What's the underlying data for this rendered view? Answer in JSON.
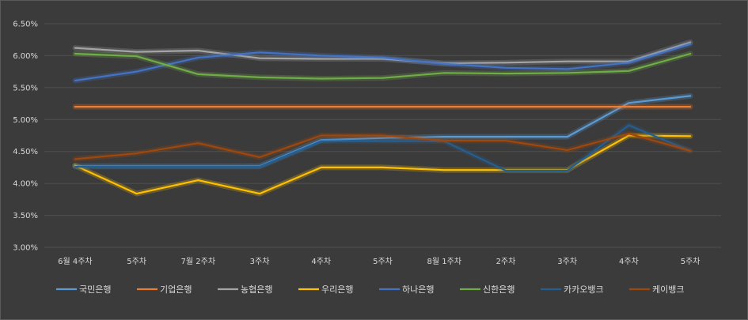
{
  "chart_data": {
    "type": "line",
    "title": "",
    "xlabel": "",
    "ylabel": "",
    "ylim": [
      0.03,
      0.065
    ],
    "y_ticks": [
      "3.00%",
      "3.50%",
      "4.00%",
      "4.50%",
      "5.00%",
      "5.50%",
      "6.00%",
      "6.50%"
    ],
    "y_tick_values": [
      0.03,
      0.035,
      0.04,
      0.045,
      0.05,
      0.055,
      0.06,
      0.065
    ],
    "grid": true,
    "legend_position": "bottom",
    "categories": [
      "6월 4주차",
      "5주차",
      "7월 2주차",
      "3주차",
      "4주차",
      "5주차",
      "8월 1주차",
      "2주차",
      "3주차",
      "4주차",
      "5주차"
    ],
    "series": [
      {
        "name": "국민은행",
        "color": "#5b9bd5",
        "values": [
          0.0427,
          0.0427,
          0.0427,
          0.0427,
          0.0468,
          0.0471,
          0.0473,
          0.0473,
          0.0473,
          0.0526,
          0.0537
        ]
      },
      {
        "name": "기업은행",
        "color": "#ed7d31",
        "values": [
          0.052,
          0.052,
          0.052,
          0.052,
          0.052,
          0.052,
          0.052,
          0.052,
          0.052,
          0.052,
          0.052
        ]
      },
      {
        "name": "농협은행",
        "color": "#a5a5a5",
        "values": [
          0.0612,
          0.0606,
          0.0608,
          0.0596,
          0.0595,
          0.0595,
          0.0588,
          0.0589,
          0.0591,
          0.0591,
          0.0621
        ]
      },
      {
        "name": "우리은행",
        "color": "#ffc000",
        "values": [
          0.0428,
          0.0384,
          0.0405,
          0.0384,
          0.0425,
          0.0425,
          0.0421,
          0.0421,
          0.0421,
          0.0475,
          0.0474
        ]
      },
      {
        "name": "하나은행",
        "color": "#4472c4",
        "values": [
          0.0561,
          0.0575,
          0.0597,
          0.0605,
          0.06,
          0.0597,
          0.0587,
          0.0581,
          0.0579,
          0.0589,
          0.0618
        ]
      },
      {
        "name": "신한은행",
        "color": "#70ad47",
        "values": [
          0.0603,
          0.0599,
          0.0571,
          0.0566,
          0.0564,
          0.0565,
          0.0573,
          0.0572,
          0.0573,
          0.0576,
          0.0603
        ]
      },
      {
        "name": "카카오뱅크",
        "color": "#255e91",
        "values": [
          0.0426,
          0.0426,
          0.0426,
          0.0426,
          0.0466,
          0.0466,
          0.0466,
          0.042,
          0.042,
          0.0491,
          0.0451
        ]
      },
      {
        "name": "케이뱅크",
        "color": "#9e480e",
        "values": [
          0.0438,
          0.0447,
          0.0463,
          0.0441,
          0.0475,
          0.0475,
          0.0467,
          0.0467,
          0.0452,
          0.0478,
          0.0451
        ]
      }
    ]
  }
}
